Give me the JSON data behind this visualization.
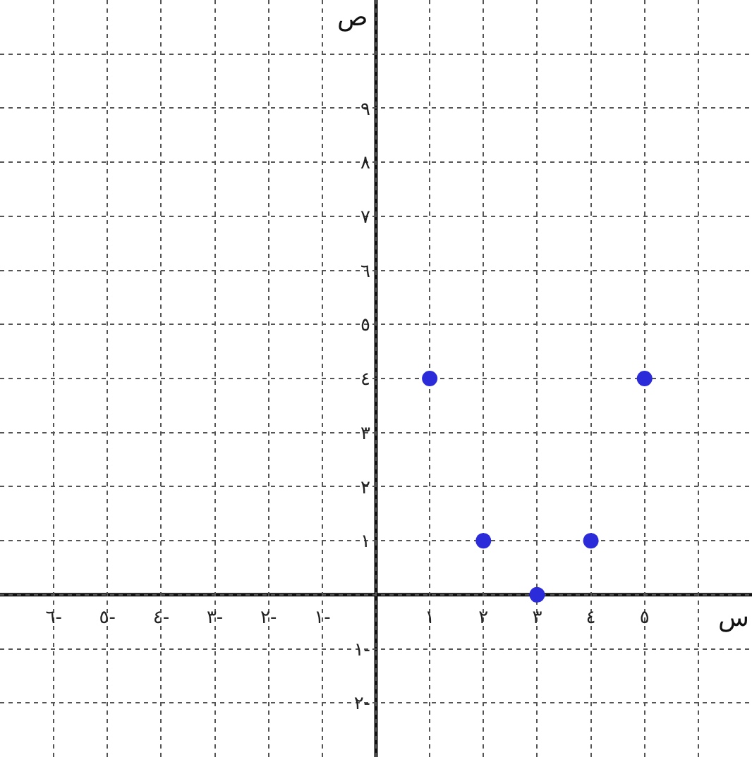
{
  "chart_data": {
    "type": "scatter",
    "xlabel": "س",
    "ylabel": "ص",
    "x": [
      1,
      2,
      3,
      4,
      5
    ],
    "series": [
      {
        "color": "#2b2bd9",
        "values": [
          4,
          1,
          0,
          1,
          4
        ]
      }
    ],
    "marker": "circle",
    "xlim": [
      -7,
      7
    ],
    "ylim": [
      -3,
      11
    ],
    "xticks": [
      {
        "value": -6,
        "label": "٦-"
      },
      {
        "value": -5,
        "label": "٥-"
      },
      {
        "value": -4,
        "label": "٤-"
      },
      {
        "value": -3,
        "label": "٣-"
      },
      {
        "value": -2,
        "label": "٢-"
      },
      {
        "value": -1,
        "label": "١-"
      },
      {
        "value": 1,
        "label": "١"
      },
      {
        "value": 2,
        "label": "٢"
      },
      {
        "value": 3,
        "label": "٣"
      },
      {
        "value": 4,
        "label": "٤"
      },
      {
        "value": 5,
        "label": "٥"
      }
    ],
    "yticks": [
      {
        "value": -2,
        "label": "٢-"
      },
      {
        "value": -1,
        "label": "١-"
      },
      {
        "value": 1,
        "label": "١"
      },
      {
        "value": 2,
        "label": "٢"
      },
      {
        "value": 3,
        "label": "٣"
      },
      {
        "value": 4,
        "label": "٤"
      },
      {
        "value": 5,
        "label": "٥"
      },
      {
        "value": 6,
        "label": "٦"
      },
      {
        "value": 7,
        "label": "٧"
      },
      {
        "value": 8,
        "label": "٨"
      },
      {
        "value": 9,
        "label": "٩"
      }
    ],
    "grid": true
  }
}
